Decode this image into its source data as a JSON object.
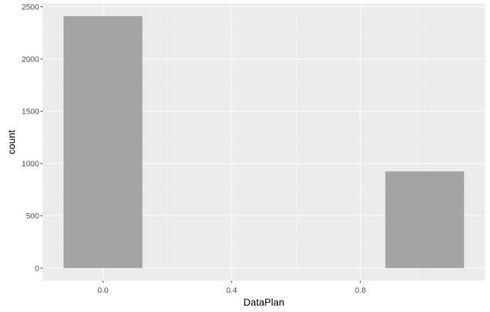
{
  "chart_data": {
    "type": "bar",
    "xlabel": "DataPlan",
    "ylabel": "count",
    "x": [
      0,
      1
    ],
    "values": [
      2410,
      925
    ],
    "bar_width": 0.25,
    "xlim": [
      -0.1875,
      1.1875
    ],
    "ylim": [
      -120.5,
      2530.5
    ],
    "x_ticks": [
      0.0,
      0.4,
      0.8
    ],
    "x_tick_labels": [
      "0.0",
      "0.4",
      "0.8"
    ],
    "y_ticks": [
      0,
      500,
      1000,
      1500,
      2000,
      2500
    ],
    "y_tick_labels": [
      "0",
      "500",
      "1000",
      "1500",
      "2000",
      "2500"
    ],
    "grid": true,
    "legend": "none",
    "colors": {
      "panel_background": "#ebebeb",
      "grid_major": "#ffffff",
      "bar_fill": "#a0a0a0",
      "tick_label": "#4d4d4d",
      "tick_mark": "#333333"
    }
  }
}
